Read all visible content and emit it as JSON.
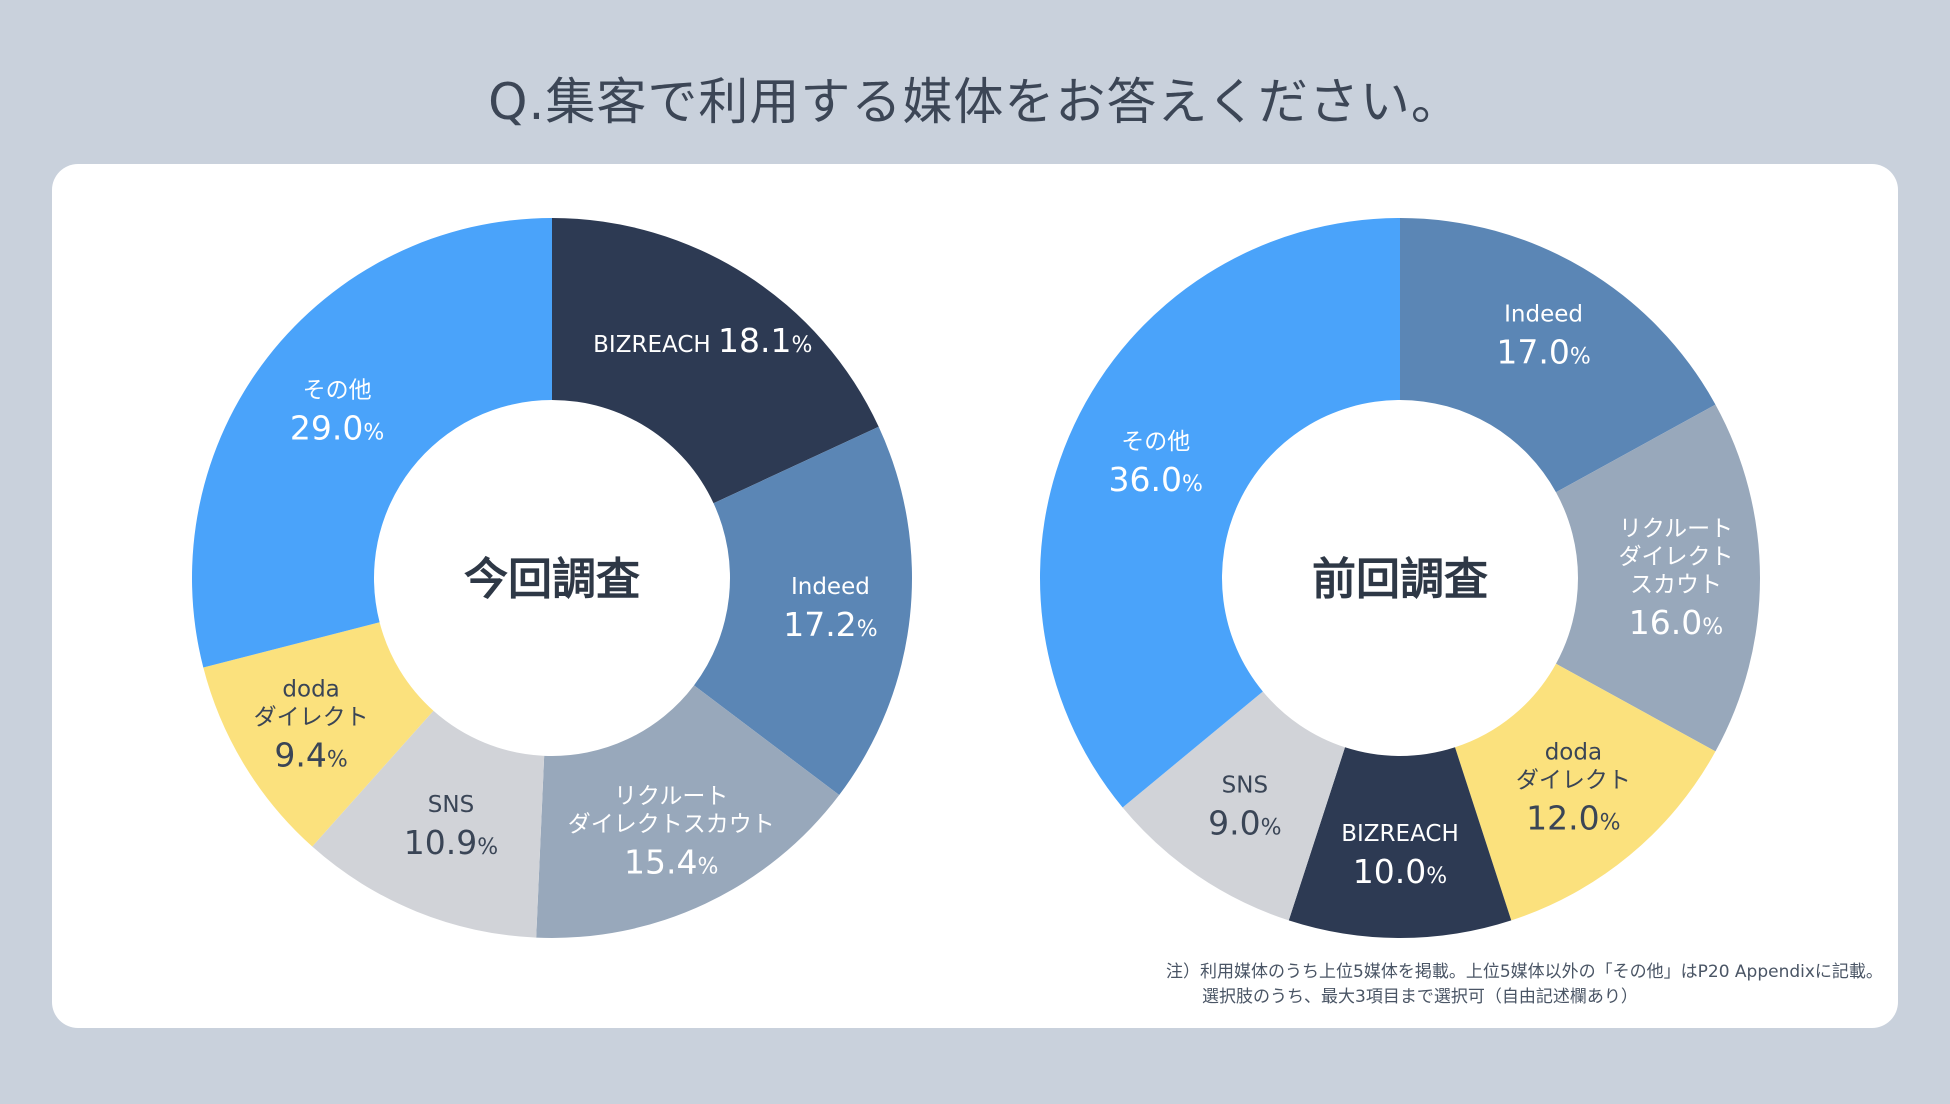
{
  "title": "Q.集客で利用する媒体をお答えください。",
  "note": {
    "line1": "注）利用媒体のうち上位5媒体を掲載。上位5媒体以外の「その他」はP20 Appendixに記載。",
    "line2": "選択肢のうち、最大3項目まで選択可（自由記述欄あり）"
  },
  "chart_data": [
    {
      "type": "pie",
      "title": "今回調査",
      "unit": "%",
      "slices": [
        {
          "name": "BIZREACH",
          "value": 18.1,
          "display": "18.1",
          "color": "#2d3a53",
          "text": "#ffffff",
          "lines": [
            "BIZREACH"
          ]
        },
        {
          "name": "Indeed",
          "value": 17.2,
          "display": "17.2",
          "color": "#5b86b5",
          "text": "#ffffff",
          "lines": [
            "Indeed"
          ]
        },
        {
          "name": "リクルートダイレクトスカウト",
          "value": 15.4,
          "display": "15.4",
          "color": "#98a8bb",
          "text": "#ffffff",
          "lines": [
            "リクルート",
            "ダイレクトスカウト"
          ]
        },
        {
          "name": "SNS",
          "value": 10.9,
          "display": "10.9",
          "color": "#d1d3d8",
          "text": "#3a4556",
          "lines": [
            "SNS"
          ]
        },
        {
          "name": "dodaダイレクト",
          "value": 9.4,
          "display": "9.4",
          "color": "#fbe17d",
          "text": "#3a4556",
          "lines": [
            "doda",
            "ダイレクト"
          ]
        },
        {
          "name": "その他",
          "value": 29.0,
          "display": "29.0",
          "color": "#4aa3fa",
          "text": "#ffffff",
          "lines": [
            "その他"
          ]
        }
      ]
    },
    {
      "type": "pie",
      "title": "前回調査",
      "unit": "%",
      "slices": [
        {
          "name": "Indeed",
          "value": 17.0,
          "display": "17.0",
          "color": "#5b86b5",
          "text": "#ffffff",
          "lines": [
            "Indeed"
          ]
        },
        {
          "name": "リクルートダイレクトスカウト",
          "value": 16.0,
          "display": "16.0",
          "color": "#98a8bb",
          "text": "#ffffff",
          "lines": [
            "リクルート",
            "ダイレクト",
            "スカウト"
          ]
        },
        {
          "name": "dodaダイレクト",
          "value": 12.0,
          "display": "12.0",
          "color": "#fbe17d",
          "text": "#3a4556",
          "lines": [
            "doda",
            "ダイレクト"
          ]
        },
        {
          "name": "BIZREACH",
          "value": 10.0,
          "display": "10.0",
          "color": "#2d3a53",
          "text": "#ffffff",
          "lines": [
            "BIZREACH"
          ]
        },
        {
          "name": "SNS",
          "value": 9.0,
          "display": "9.0",
          "color": "#d1d3d8",
          "text": "#3a4556",
          "lines": [
            "SNS"
          ]
        },
        {
          "name": "その他",
          "value": 36.0,
          "display": "36.0",
          "color": "#4aa3fa",
          "text": "#ffffff",
          "lines": [
            "その他"
          ]
        }
      ]
    }
  ]
}
